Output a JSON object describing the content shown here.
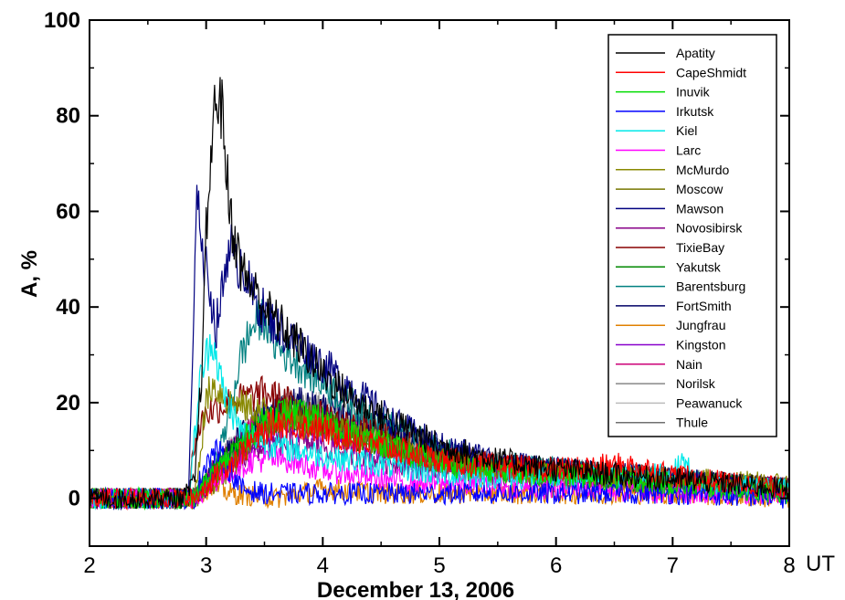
{
  "chart_data": {
    "type": "line",
    "title": "",
    "xlabel": "December 13, 2006",
    "x_unit_label": "UT",
    "ylabel": "A, %",
    "xlim": [
      2,
      8
    ],
    "ylim": [
      -10,
      100
    ],
    "xticks": [
      "2",
      "3",
      "4",
      "5",
      "6",
      "7",
      "8"
    ],
    "yticks": [
      "0",
      "20",
      "40",
      "60",
      "80",
      "100"
    ],
    "grid": false,
    "legend": "top-right",
    "series": [
      {
        "name": "Apatity",
        "color": "#000000",
        "points": [
          [
            2.0,
            0
          ],
          [
            2.8,
            0
          ],
          [
            2.9,
            3
          ],
          [
            2.97,
            30
          ],
          [
            3.0,
            55
          ],
          [
            3.05,
            75
          ],
          [
            3.1,
            86
          ],
          [
            3.15,
            78
          ],
          [
            3.2,
            60
          ],
          [
            3.3,
            48
          ],
          [
            3.5,
            40
          ],
          [
            3.8,
            32
          ],
          [
            4.0,
            26
          ],
          [
            4.3,
            20
          ],
          [
            4.6,
            16
          ],
          [
            5.0,
            11
          ],
          [
            5.5,
            8
          ],
          [
            6.0,
            6
          ],
          [
            7.0,
            4
          ],
          [
            8.0,
            2
          ]
        ]
      },
      {
        "name": "CapeShmidt",
        "color": "#ff0000",
        "points": [
          [
            2.0,
            0
          ],
          [
            2.9,
            0
          ],
          [
            3.1,
            5
          ],
          [
            3.4,
            12
          ],
          [
            3.6,
            16
          ],
          [
            3.9,
            15
          ],
          [
            4.3,
            12
          ],
          [
            4.8,
            9
          ],
          [
            5.3,
            7
          ],
          [
            6.0,
            6
          ],
          [
            6.6,
            7
          ],
          [
            7.2,
            4
          ],
          [
            8.0,
            2
          ]
        ]
      },
      {
        "name": "Inuvik",
        "color": "#00dd00",
        "points": [
          [
            2.0,
            0
          ],
          [
            2.9,
            0
          ],
          [
            3.1,
            6
          ],
          [
            3.4,
            14
          ],
          [
            3.6,
            18
          ],
          [
            3.9,
            17
          ],
          [
            4.3,
            13
          ],
          [
            4.8,
            9
          ],
          [
            5.3,
            6
          ],
          [
            6.0,
            5
          ],
          [
            7.0,
            3
          ],
          [
            8.0,
            1
          ]
        ]
      },
      {
        "name": "Irkutsk",
        "color": "#0000ff",
        "points": [
          [
            2.0,
            0
          ],
          [
            2.9,
            0
          ],
          [
            3.0,
            8
          ],
          [
            3.1,
            10
          ],
          [
            3.2,
            6
          ],
          [
            3.3,
            2
          ],
          [
            3.5,
            1
          ],
          [
            4.0,
            1
          ],
          [
            5.0,
            1
          ],
          [
            6.0,
            1
          ],
          [
            7.0,
            1
          ],
          [
            8.0,
            0
          ]
        ]
      },
      {
        "name": "Kiel",
        "color": "#00e8e8",
        "points": [
          [
            2.0,
            0
          ],
          [
            2.85,
            0
          ],
          [
            2.95,
            25
          ],
          [
            3.05,
            34
          ],
          [
            3.15,
            22
          ],
          [
            3.3,
            14
          ],
          [
            3.6,
            11
          ],
          [
            4.0,
            9
          ],
          [
            4.5,
            7
          ],
          [
            5.0,
            5
          ],
          [
            6.0,
            4
          ],
          [
            7.0,
            5
          ],
          [
            7.1,
            8
          ],
          [
            7.2,
            3
          ],
          [
            8.0,
            2
          ]
        ]
      },
      {
        "name": "Larc",
        "color": "#ff00ff",
        "points": [
          [
            2.0,
            0
          ],
          [
            2.9,
            0
          ],
          [
            3.1,
            4
          ],
          [
            3.4,
            8
          ],
          [
            3.7,
            8
          ],
          [
            4.0,
            6
          ],
          [
            4.5,
            4
          ],
          [
            5.0,
            3
          ],
          [
            6.0,
            2
          ],
          [
            7.0,
            1
          ],
          [
            8.0,
            1
          ]
        ]
      },
      {
        "name": "McMurdo",
        "color": "#888800",
        "points": [
          [
            2.0,
            0
          ],
          [
            2.9,
            0
          ],
          [
            3.0,
            20
          ],
          [
            3.05,
            24
          ],
          [
            3.2,
            20
          ],
          [
            3.5,
            18
          ],
          [
            3.8,
            16
          ],
          [
            4.2,
            14
          ],
          [
            4.6,
            11
          ],
          [
            5.0,
            8
          ],
          [
            5.5,
            6
          ],
          [
            6.0,
            5
          ],
          [
            7.0,
            4
          ],
          [
            8.0,
            3
          ]
        ]
      },
      {
        "name": "Moscow",
        "color": "#777700",
        "points": [
          [
            2.0,
            0
          ],
          [
            2.9,
            0
          ],
          [
            3.2,
            6
          ],
          [
            3.5,
            15
          ],
          [
            3.7,
            18
          ],
          [
            4.0,
            16
          ],
          [
            4.4,
            12
          ],
          [
            4.9,
            8
          ],
          [
            5.5,
            6
          ],
          [
            6.0,
            5
          ],
          [
            7.0,
            3
          ],
          [
            8.0,
            2
          ]
        ]
      },
      {
        "name": "Mawson",
        "color": "#000080",
        "points": [
          [
            2.0,
            0
          ],
          [
            2.85,
            0
          ],
          [
            2.93,
            68
          ],
          [
            2.97,
            50
          ],
          [
            3.03,
            45
          ],
          [
            3.08,
            35
          ],
          [
            3.15,
            45
          ],
          [
            3.2,
            55
          ],
          [
            3.25,
            48
          ],
          [
            3.3,
            50
          ],
          [
            3.4,
            42
          ],
          [
            3.6,
            36
          ],
          [
            3.8,
            32
          ],
          [
            4.0,
            28
          ],
          [
            4.3,
            22
          ],
          [
            4.6,
            16
          ],
          [
            5.0,
            11
          ],
          [
            5.5,
            8
          ],
          [
            6.0,
            6
          ],
          [
            7.0,
            4
          ],
          [
            8.0,
            2
          ]
        ]
      },
      {
        "name": "Novosibirsk",
        "color": "#880088",
        "points": [
          [
            2.0,
            0
          ],
          [
            2.9,
            0
          ],
          [
            3.1,
            5
          ],
          [
            3.4,
            10
          ],
          [
            3.7,
            12
          ],
          [
            4.0,
            11
          ],
          [
            4.5,
            8
          ],
          [
            5.0,
            6
          ],
          [
            6.0,
            4
          ],
          [
            7.0,
            3
          ],
          [
            8.0,
            2
          ]
        ]
      },
      {
        "name": "TixieBay",
        "color": "#880000",
        "points": [
          [
            2.0,
            0
          ],
          [
            2.85,
            0
          ],
          [
            2.9,
            12
          ],
          [
            3.0,
            18
          ],
          [
            3.2,
            20
          ],
          [
            3.5,
            22
          ],
          [
            3.7,
            20
          ],
          [
            4.0,
            17
          ],
          [
            4.5,
            13
          ],
          [
            5.0,
            9
          ],
          [
            5.5,
            7
          ],
          [
            6.0,
            6
          ],
          [
            7.0,
            4
          ],
          [
            8.0,
            2
          ]
        ]
      },
      {
        "name": "Yakutsk",
        "color": "#008800",
        "points": [
          [
            2.0,
            0
          ],
          [
            2.9,
            0
          ],
          [
            3.1,
            6
          ],
          [
            3.4,
            14
          ],
          [
            3.7,
            17
          ],
          [
            4.0,
            16
          ],
          [
            4.4,
            12
          ],
          [
            4.9,
            8
          ],
          [
            5.5,
            6
          ],
          [
            6.0,
            5
          ],
          [
            7.0,
            3
          ],
          [
            8.0,
            2
          ]
        ]
      },
      {
        "name": "Barentsburg",
        "color": "#008080",
        "points": [
          [
            2.0,
            0
          ],
          [
            2.9,
            0
          ],
          [
            3.1,
            8
          ],
          [
            3.2,
            18
          ],
          [
            3.3,
            30
          ],
          [
            3.4,
            36
          ],
          [
            3.5,
            38
          ],
          [
            3.6,
            32
          ],
          [
            3.8,
            28
          ],
          [
            4.0,
            24
          ],
          [
            4.3,
            19
          ],
          [
            4.6,
            15
          ],
          [
            5.0,
            10
          ],
          [
            5.5,
            7
          ],
          [
            6.0,
            6
          ],
          [
            7.0,
            4
          ],
          [
            8.0,
            2
          ]
        ]
      },
      {
        "name": "FortSmith",
        "color": "#000066",
        "points": [
          [
            2.0,
            0
          ],
          [
            2.9,
            0
          ],
          [
            3.1,
            7
          ],
          [
            3.4,
            16
          ],
          [
            3.7,
            20
          ],
          [
            4.0,
            19
          ],
          [
            4.4,
            15
          ],
          [
            4.9,
            10
          ],
          [
            5.5,
            7
          ],
          [
            6.0,
            6
          ],
          [
            7.0,
            4
          ],
          [
            8.0,
            2
          ]
        ]
      },
      {
        "name": "Jungfrau",
        "color": "#e08000",
        "points": [
          [
            2.0,
            0
          ],
          [
            2.9,
            0
          ],
          [
            3.05,
            3
          ],
          [
            3.2,
            1
          ],
          [
            3.6,
            0
          ],
          [
            4.0,
            2
          ],
          [
            4.5,
            1
          ],
          [
            5.0,
            1
          ],
          [
            6.0,
            1
          ],
          [
            7.0,
            1
          ],
          [
            8.0,
            0
          ]
        ]
      },
      {
        "name": "Kingston",
        "color": "#8800cc",
        "points": [
          [
            2.0,
            0
          ],
          [
            2.9,
            0
          ],
          [
            3.1,
            6
          ],
          [
            3.4,
            12
          ],
          [
            3.7,
            15
          ],
          [
            4.0,
            14
          ],
          [
            4.5,
            10
          ],
          [
            5.0,
            7
          ],
          [
            6.0,
            5
          ],
          [
            7.0,
            3
          ],
          [
            8.0,
            2
          ]
        ]
      },
      {
        "name": "Nain",
        "color": "#cc0077",
        "points": [
          [
            2.0,
            0
          ],
          [
            2.9,
            0
          ],
          [
            3.1,
            7
          ],
          [
            3.4,
            14
          ],
          [
            3.7,
            17
          ],
          [
            4.0,
            16
          ],
          [
            4.5,
            12
          ],
          [
            5.0,
            8
          ],
          [
            6.0,
            5
          ],
          [
            7.0,
            3
          ],
          [
            8.0,
            2
          ]
        ]
      },
      {
        "name": "Norilsk",
        "color": "#888888",
        "points": [
          [
            2.0,
            0
          ],
          [
            2.9,
            0
          ],
          [
            3.1,
            6
          ],
          [
            3.4,
            15
          ],
          [
            3.7,
            19
          ],
          [
            4.0,
            18
          ],
          [
            4.5,
            14
          ],
          [
            5.0,
            9
          ],
          [
            5.5,
            7
          ],
          [
            6.0,
            6
          ],
          [
            7.0,
            4
          ],
          [
            8.0,
            2
          ]
        ]
      },
      {
        "name": "Peawanuck",
        "color": "#bbbbbb",
        "points": [
          [
            2.0,
            0
          ],
          [
            2.9,
            0
          ],
          [
            3.1,
            7
          ],
          [
            3.4,
            16
          ],
          [
            3.7,
            20
          ],
          [
            4.0,
            19
          ],
          [
            4.5,
            14
          ],
          [
            5.0,
            9
          ],
          [
            5.5,
            7
          ],
          [
            6.0,
            6
          ],
          [
            7.0,
            4
          ],
          [
            8.0,
            2
          ]
        ]
      },
      {
        "name": "Thule",
        "color": "#707070",
        "points": [
          [
            2.0,
            0
          ],
          [
            2.9,
            0
          ],
          [
            3.1,
            7
          ],
          [
            3.4,
            15
          ],
          [
            3.7,
            19
          ],
          [
            4.0,
            18
          ],
          [
            4.5,
            14
          ],
          [
            5.0,
            10
          ],
          [
            5.5,
            7
          ],
          [
            6.0,
            6
          ],
          [
            7.0,
            4
          ],
          [
            8.0,
            2
          ]
        ]
      }
    ]
  }
}
